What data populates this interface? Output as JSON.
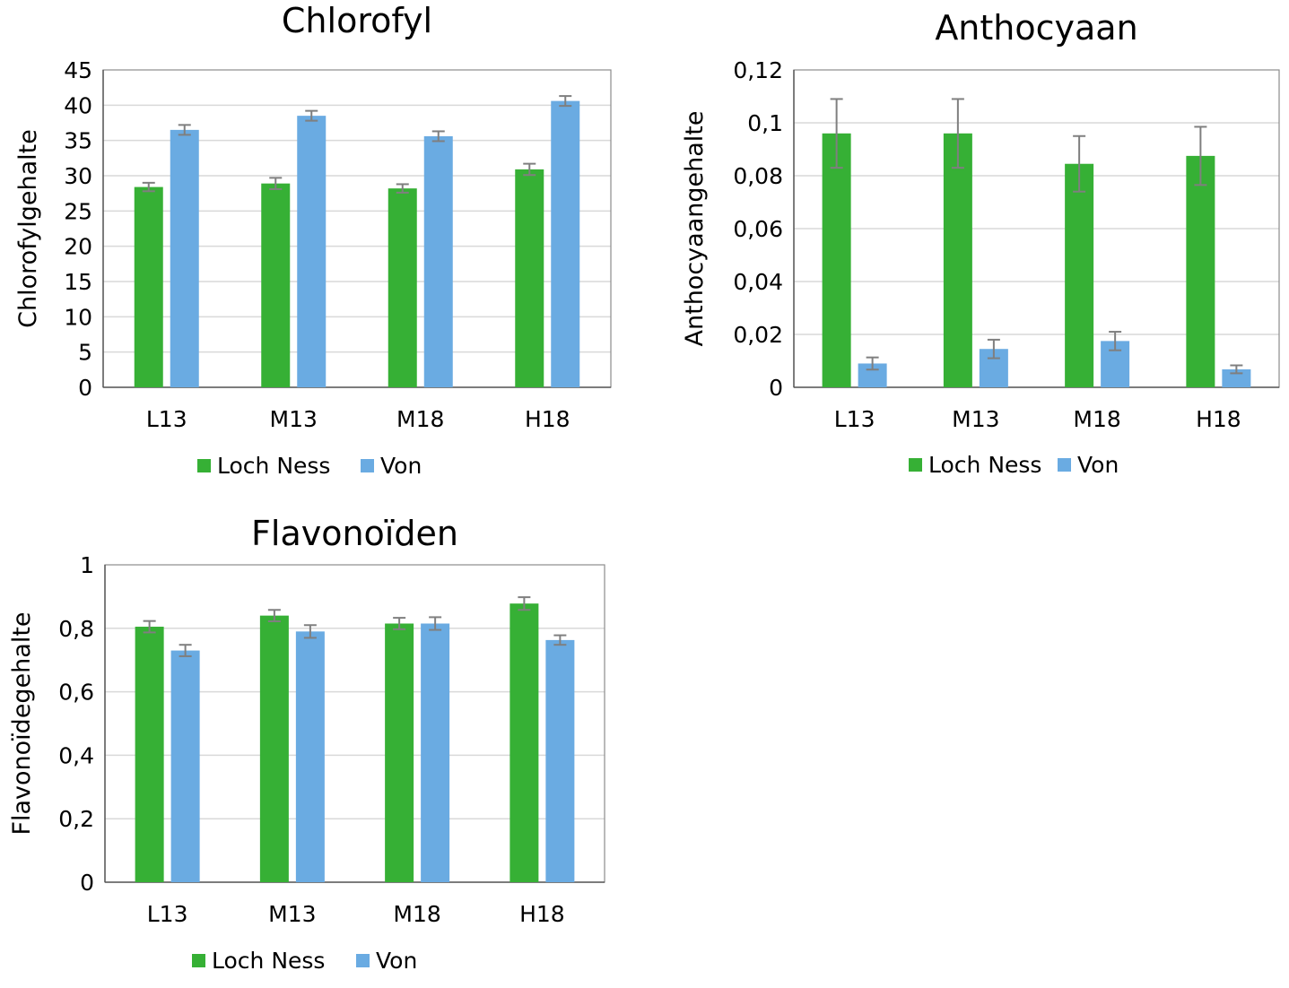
{
  "chart_data": [
    {
      "type": "bar",
      "title": "Chlorofyl",
      "xlabel": "",
      "ylabel": "Chlorofylgehalte",
      "ylim": [
        0,
        45
      ],
      "yticks": [
        "0",
        "5",
        "10",
        "15",
        "20",
        "25",
        "30",
        "35",
        "40",
        "45"
      ],
      "categories": [
        "L13",
        "M13",
        "M18",
        "H18"
      ],
      "series": [
        {
          "name": "Loch Ness",
          "color": "#36B035",
          "values": [
            28.4,
            28.9,
            28.2,
            30.9
          ],
          "errors": [
            0.6,
            0.8,
            0.6,
            0.8
          ]
        },
        {
          "name": "Von",
          "color": "#6AABE2",
          "values": [
            36.5,
            38.5,
            35.6,
            40.6
          ],
          "errors": [
            0.7,
            0.7,
            0.7,
            0.7
          ]
        }
      ],
      "grid": true,
      "legend": "bottom"
    },
    {
      "type": "bar",
      "title": "Anthocyaan",
      "xlabel": "",
      "ylabel": "Anthocyaangehalte",
      "ylim": [
        0,
        0.12
      ],
      "yticks": [
        "0",
        "0,02",
        "0,04",
        "0,06",
        "0,08",
        "0,1",
        "0,12"
      ],
      "categories": [
        "L13",
        "M13",
        "M18",
        "H18"
      ],
      "series": [
        {
          "name": "Loch Ness",
          "color": "#36B035",
          "values": [
            0.096,
            0.096,
            0.0845,
            0.0875
          ],
          "errors": [
            0.013,
            0.013,
            0.0105,
            0.011
          ]
        },
        {
          "name": "Von",
          "color": "#6AABE2",
          "values": [
            0.009,
            0.0145,
            0.0175,
            0.0068
          ],
          "errors": [
            0.0023,
            0.0035,
            0.0035,
            0.0015
          ]
        }
      ],
      "grid": true,
      "legend": "bottom"
    },
    {
      "type": "bar",
      "title": "Flavonoïden",
      "xlabel": "",
      "ylabel": "Flavonoïdegehalte",
      "ylim": [
        0,
        1
      ],
      "yticks": [
        "0",
        "0,2",
        "0,4",
        "0,6",
        "0,8",
        "1"
      ],
      "categories": [
        "L13",
        "M13",
        "M18",
        "H18"
      ],
      "series": [
        {
          "name": "Loch Ness",
          "color": "#36B035",
          "values": [
            0.805,
            0.84,
            0.815,
            0.878
          ],
          "errors": [
            0.018,
            0.018,
            0.018,
            0.02
          ]
        },
        {
          "name": "Von",
          "color": "#6AABE2",
          "values": [
            0.73,
            0.79,
            0.815,
            0.763
          ],
          "errors": [
            0.018,
            0.02,
            0.02,
            0.015
          ]
        }
      ],
      "grid": true,
      "legend": "bottom"
    }
  ]
}
